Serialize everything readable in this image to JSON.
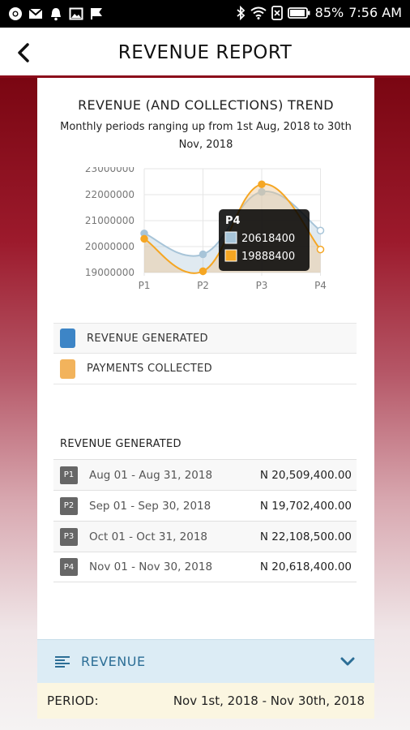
{
  "status_bar": {
    "battery": "85%",
    "time": "7:56 AM"
  },
  "header": {
    "title": "REVENUE REPORT"
  },
  "chart": {
    "title": "REVENUE (AND COLLECTIONS) TREND",
    "subtitle": "Monthly periods ranging up from 1st Aug, 2018 to 30th Nov, 2018"
  },
  "chart_data": {
    "type": "line",
    "categories": [
      "P1",
      "P2",
      "P3",
      "P4"
    ],
    "y_ticks": [
      "23000000",
      "22000000",
      "21000000",
      "20000000",
      "19000000"
    ],
    "ylim": [
      19000000,
      23000000
    ],
    "grid": true,
    "series": [
      {
        "name": "REVENUE GENERATED",
        "values": [
          20509400,
          19702400,
          22108500,
          20618400
        ],
        "color": "#a7c4d8"
      },
      {
        "name": "PAYMENTS COLLECTED",
        "values": [
          20300000,
          19050000,
          22400000,
          19888400
        ],
        "color": "#f5a623"
      }
    ],
    "tooltip": {
      "title": "P4",
      "values": [
        "20618400",
        "19888400"
      ]
    }
  },
  "legend": {
    "items": [
      {
        "label": "REVENUE GENERATED",
        "color": "#3d85c6"
      },
      {
        "label": "PAYMENTS COLLECTED",
        "color": "#f2b35c"
      }
    ]
  },
  "revenue_table": {
    "heading": "REVENUE GENERATED",
    "rows": [
      {
        "badge": "P1",
        "dates": "Aug 01 - Aug 31, 2018",
        "amount": "N 20,509,400.00"
      },
      {
        "badge": "P2",
        "dates": "Sep 01 - Sep 30, 2018",
        "amount": "N 19,702,400.00"
      },
      {
        "badge": "P3",
        "dates": "Oct 01 - Oct 31, 2018",
        "amount": "N 22,108,500.00"
      },
      {
        "badge": "P4",
        "dates": "Nov 01 - Nov 30, 2018",
        "amount": "N 20,618,400.00"
      }
    ]
  },
  "accordion": {
    "label": "REVENUE"
  },
  "period": {
    "label": "PERIOD:",
    "value": "Nov 1st, 2018 - Nov 30th, 2018"
  }
}
